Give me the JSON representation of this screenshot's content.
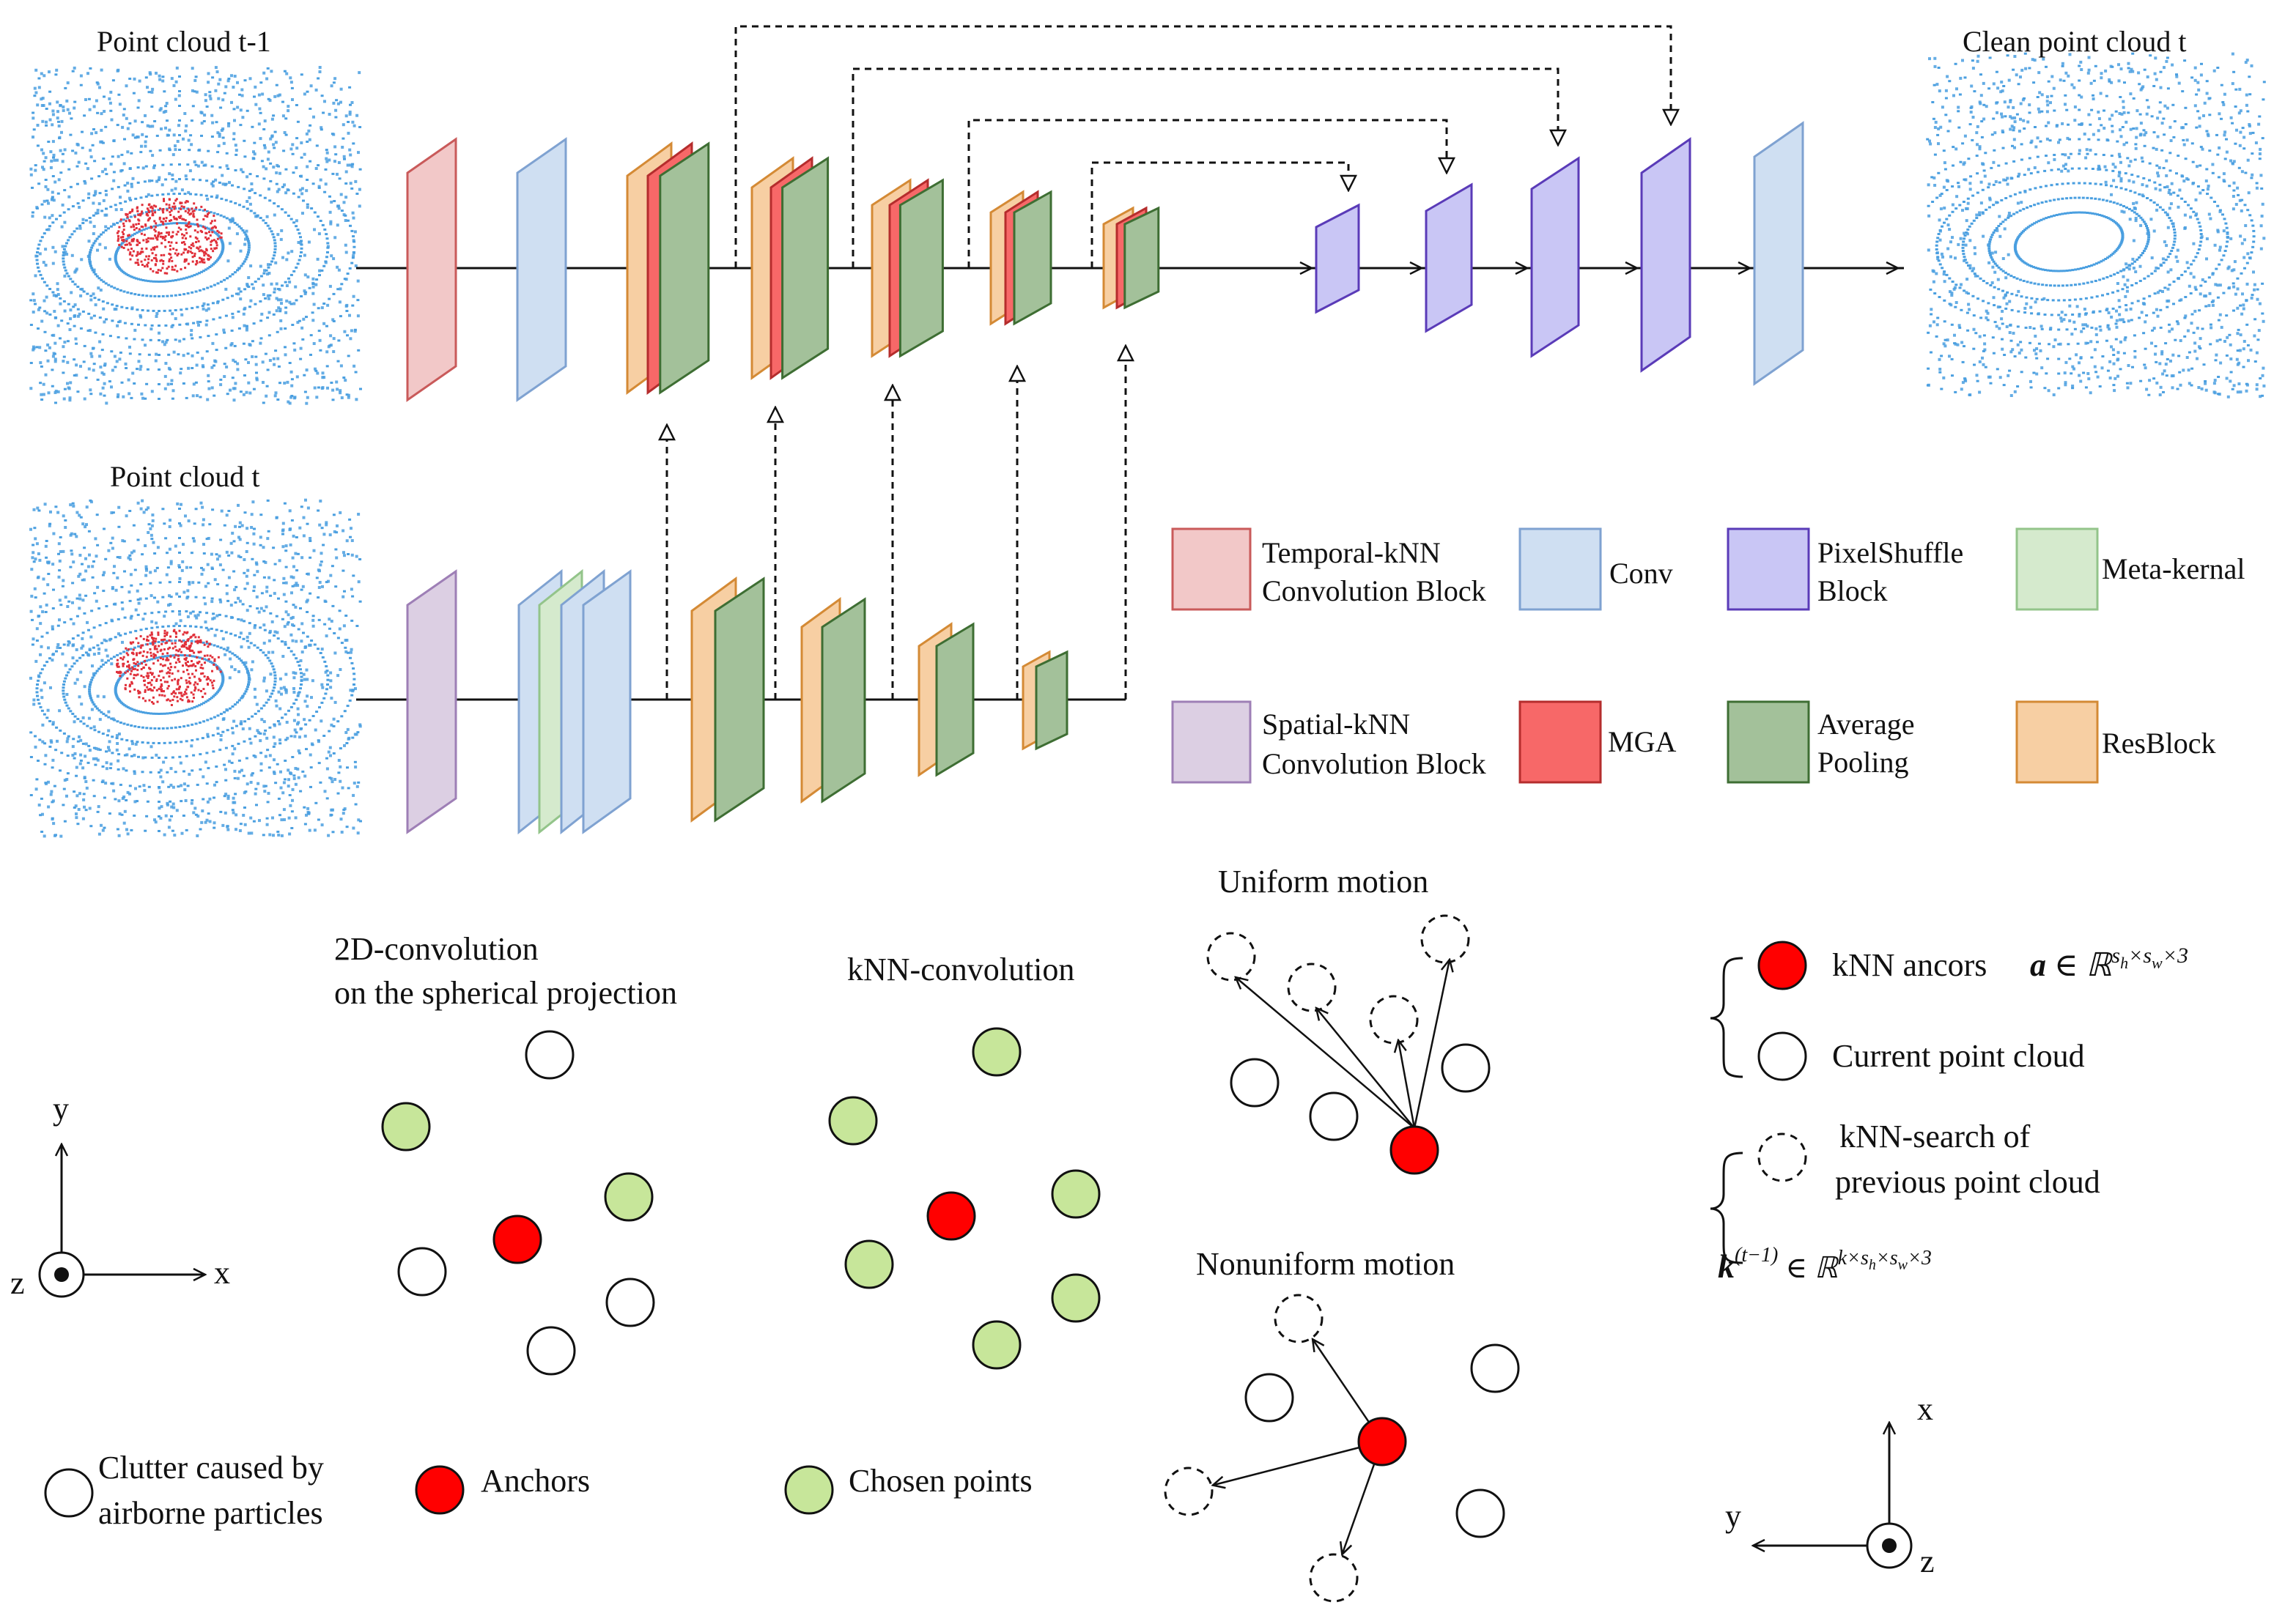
{
  "colors": {
    "temporal_knn": {
      "fill": "#f2c8c8",
      "stroke": "#c95a5a"
    },
    "conv": {
      "fill": "#cfdff2",
      "stroke": "#7fa2d1"
    },
    "pixelshuffle": {
      "fill": "#c9c6f5",
      "stroke": "#5a3bb8"
    },
    "meta_kernel": {
      "fill": "#d5eacd",
      "stroke": "#93c48a"
    },
    "spatial_knn": {
      "fill": "#dccfe3",
      "stroke": "#9e7fb6"
    },
    "mga": {
      "fill": "#f76868",
      "stroke": "#b52d2d"
    },
    "avg_pool": {
      "fill": "#a3c19a",
      "stroke": "#3e6e33"
    },
    "resblock": {
      "fill": "#f7cfa3",
      "stroke": "#d48a35"
    },
    "point_cloud": "#4a9fe0",
    "clutter_points": "#e0303a",
    "anchor": "#ff0000",
    "chosen": "#c7e69a"
  },
  "pointclouds": {
    "prev_label": "Point cloud t-1",
    "curr_label": "Point cloud t",
    "clean_label": "Clean point cloud t"
  },
  "legend": {
    "temporal_knn": [
      "Temporal-kNN",
      "Convolution Block"
    ],
    "conv": "Conv",
    "pixelshuffle": [
      "PixelShuffle",
      "Block"
    ],
    "meta_kernel": "Meta-kernal",
    "spatial_knn": [
      "Spatial-kNN",
      "Convolution Block"
    ],
    "mga": "MGA",
    "avg_pool": [
      "Average",
      "Pooling"
    ],
    "resblock": "ResBlock"
  },
  "bottom": {
    "conv2d_title": [
      "2D-convolution",
      "on the spherical projection"
    ],
    "knn_title": "kNN-convolution",
    "uniform_title": "Uniform motion",
    "nonuniform_title": "Nonuniform motion",
    "axes_left": {
      "y": "y",
      "x": "x",
      "z": "z"
    },
    "axes_right": {
      "x": "x",
      "y": "y",
      "z": "z"
    },
    "legend_clutter": [
      "Clutter caused by",
      "airborne particles"
    ],
    "legend_anchors": "Anchors",
    "legend_chosen": "Chosen points",
    "knn_anchors_text": "kNN ancors",
    "knn_anchors_math": "a ∈ ℝ^(s_h×s_w×3)",
    "current_pc_text": "Current point cloud",
    "knn_search_text": [
      "kNN-search of",
      "previous point cloud"
    ],
    "prev_math": "k^(t−1) ∈ ℝ^(k×s_h×s_w×3)"
  }
}
